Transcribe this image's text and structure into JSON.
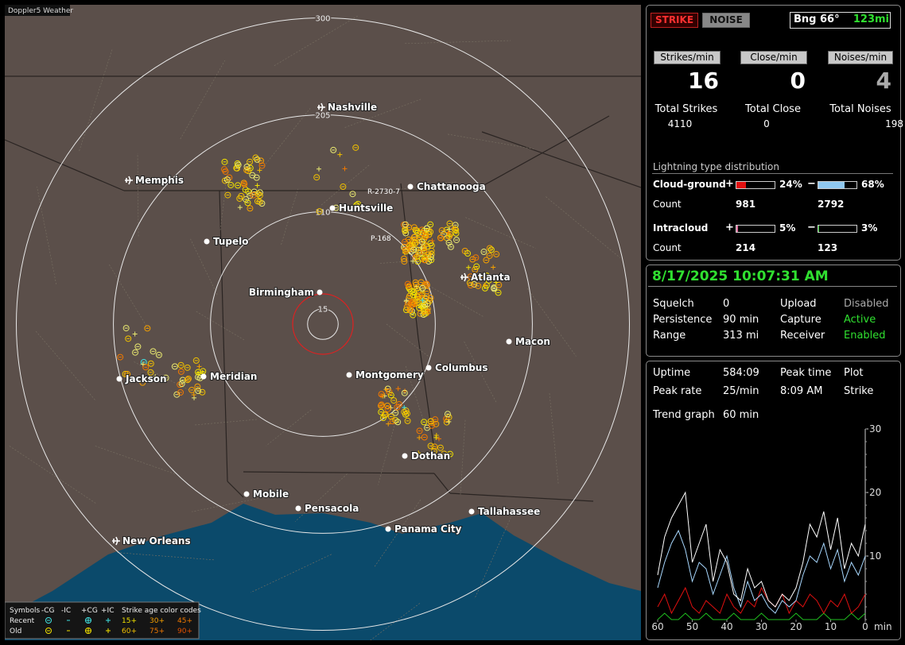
{
  "map": {
    "brand": "Doppler5 Weather",
    "ranges": [
      300,
      205,
      110,
      15
    ],
    "cities": [
      "Nashville",
      "Memphis",
      "Chattanooga",
      "Huntsville",
      "Tupelo",
      "Birmingham",
      "Atlanta",
      "Macon",
      "Montgomery",
      "Columbus",
      "Jackson",
      "Meridian",
      "Dothan",
      "Mobile",
      "Pensacola",
      "Tallahassee",
      "Panama City",
      "New Orleans"
    ],
    "markers": [
      "R-2730-7",
      "P-168"
    ],
    "legend": {
      "symbols_title": "Symbols",
      "symbols": [
        "-CG",
        "-IC",
        "+CG",
        "+IC"
      ],
      "age_title": "Strike age color codes",
      "rows": [
        "Recent",
        "Old"
      ],
      "recent_ages": [
        "15+",
        "30+",
        "45+"
      ],
      "old_ages": [
        "60+",
        "75+",
        "90+"
      ]
    }
  },
  "panel": {
    "buttons": [
      "STRIKE",
      "NOISE"
    ],
    "bearing": "Bng 66°",
    "distance": "123mi",
    "rates": [
      {
        "label": "Strikes/min",
        "value": "16"
      },
      {
        "label": "Close/min",
        "value": "0"
      },
      {
        "label": "Noises/min",
        "value": "4"
      }
    ],
    "totals": [
      {
        "label": "Total Strikes",
        "value": "4110"
      },
      {
        "label": "Total Close",
        "value": "0"
      },
      {
        "label": "Total Noises",
        "value": "198"
      }
    ],
    "distribution": {
      "title": "Lightning type distribution",
      "signs": [
        "+",
        "−"
      ],
      "count_label": "Count",
      "rows": [
        {
          "label": "Cloud-ground",
          "pos": {
            "value": 24,
            "label": "24%"
          },
          "neg": {
            "value": 68,
            "label": "68%"
          },
          "pos_count": "981",
          "neg_count": "2792"
        },
        {
          "label": "Intracloud",
          "pos": {
            "value": 5,
            "label": "5%"
          },
          "neg": {
            "value": 3,
            "label": "3%"
          },
          "pos_count": "214",
          "neg_count": "123"
        }
      ]
    }
  },
  "status": {
    "datetime": "8/17/2025 10:07:31 AM",
    "settings": [
      [
        "Squelch",
        "0",
        "Upload",
        "Disabled"
      ],
      [
        "Persistence",
        "90 min",
        "Capture",
        "Active"
      ],
      [
        "Range",
        "313 mi",
        "Receiver",
        "Enabled"
      ]
    ]
  },
  "stats": {
    "rows": [
      [
        "Uptime",
        "584:09",
        "Peak time",
        "Plot"
      ],
      [
        "Peak rate",
        "25/min",
        "8:09 AM",
        "Strike"
      ]
    ],
    "trend_label": "Trend graph",
    "trend_window": "60 min"
  },
  "chart_data": {
    "type": "line",
    "x_unit": "min",
    "xlim": [
      60,
      0
    ],
    "ylim": [
      0,
      30
    ],
    "xticks": [
      60,
      50,
      40,
      30,
      20,
      10,
      0
    ],
    "yticks": [
      10,
      20,
      30
    ],
    "x": [
      60,
      58,
      56,
      54,
      52,
      50,
      48,
      46,
      44,
      42,
      40,
      38,
      36,
      34,
      32,
      30,
      28,
      26,
      24,
      22,
      20,
      18,
      16,
      14,
      12,
      10,
      8,
      6,
      4,
      2,
      0
    ],
    "series": [
      {
        "color": "#ffffff",
        "values": [
          7,
          13,
          16,
          18,
          20,
          9,
          12,
          15,
          6,
          11,
          9,
          4,
          3,
          8,
          5,
          6,
          3,
          2,
          4,
          3,
          5,
          9,
          15,
          13,
          17,
          11,
          16,
          8,
          12,
          10,
          15
        ]
      },
      {
        "color": "#a8d8ff",
        "values": [
          5,
          9,
          12,
          14,
          11,
          6,
          9,
          8,
          4,
          7,
          10,
          5,
          2,
          6,
          3,
          4,
          2,
          1,
          3,
          2,
          3,
          7,
          10,
          9,
          12,
          8,
          11,
          6,
          9,
          7,
          10
        ]
      },
      {
        "color": "#e01010",
        "values": [
          2,
          4,
          1,
          3,
          5,
          2,
          1,
          3,
          2,
          1,
          4,
          2,
          1,
          3,
          2,
          5,
          3,
          2,
          4,
          1,
          3,
          2,
          4,
          3,
          1,
          3,
          2,
          4,
          1,
          2,
          4
        ]
      },
      {
        "color": "#20c020",
        "values": [
          0,
          1,
          0,
          0,
          1,
          0,
          0,
          1,
          0,
          0,
          0,
          1,
          0,
          0,
          0,
          1,
          0,
          0,
          0,
          0,
          1,
          0,
          0,
          0,
          1,
          0,
          0,
          0,
          1,
          0,
          1
        ]
      }
    ]
  }
}
